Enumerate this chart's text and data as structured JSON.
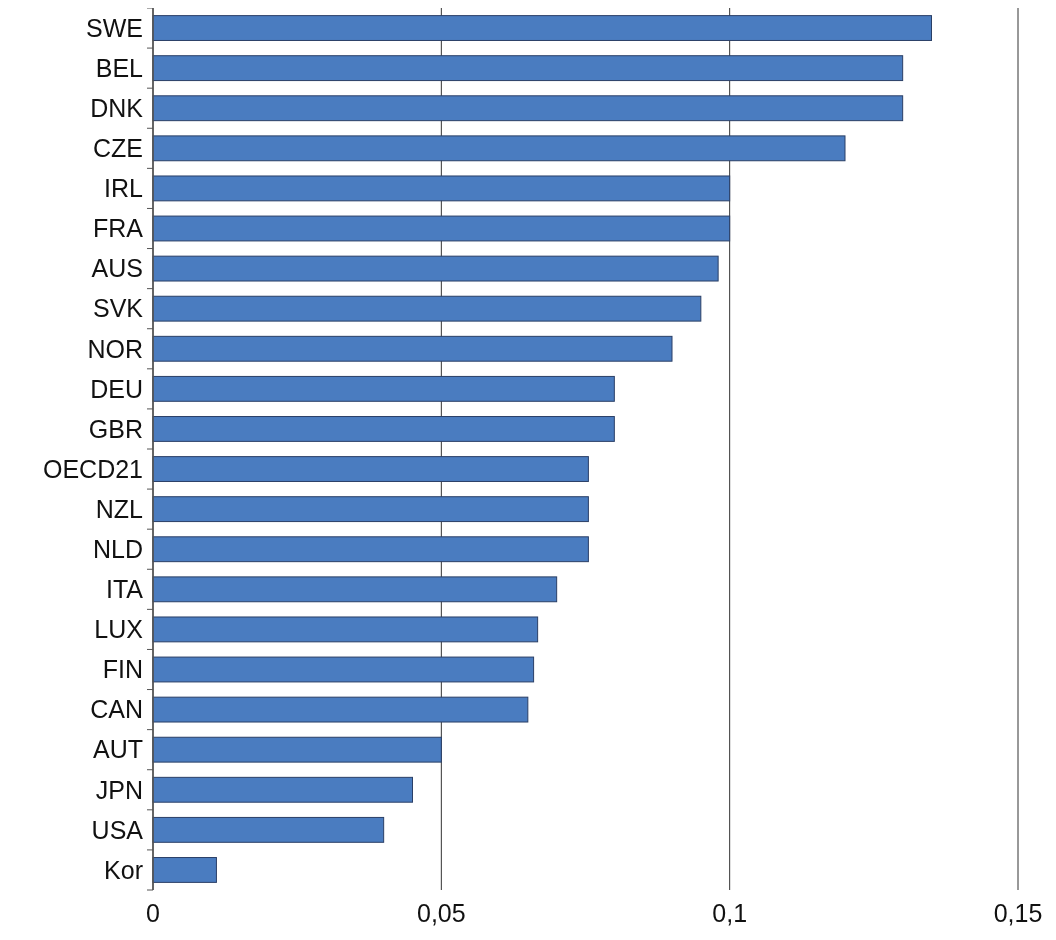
{
  "chart_data": {
    "type": "bar",
    "orientation": "horizontal",
    "categories": [
      "SWE",
      "BEL",
      "DNK",
      "CZE",
      "IRL",
      "FRA",
      "AUS",
      "SVK",
      "NOR",
      "DEU",
      "GBR",
      "OECD21",
      "NZL",
      "NLD",
      "ITA",
      "LUX",
      "FIN",
      "CAN",
      "AUT",
      "JPN",
      "USA",
      "Kor"
    ],
    "values": [
      0.135,
      0.13,
      0.13,
      0.12,
      0.1,
      0.1,
      0.098,
      0.095,
      0.09,
      0.08,
      0.08,
      0.0755,
      0.0755,
      0.0755,
      0.07,
      0.0667,
      0.066,
      0.065,
      0.05,
      0.045,
      0.04,
      0.011
    ],
    "color": "#4a7cc0",
    "xlim": [
      0,
      0.15
    ],
    "xticks": [
      0,
      {
        "value": 0.05,
        "label": "0,05"
      },
      {
        "value": 0.1,
        "label": "0,1"
      },
      {
        "value": 0.15,
        "label": "0,15"
      }
    ],
    "grid": "x"
  }
}
